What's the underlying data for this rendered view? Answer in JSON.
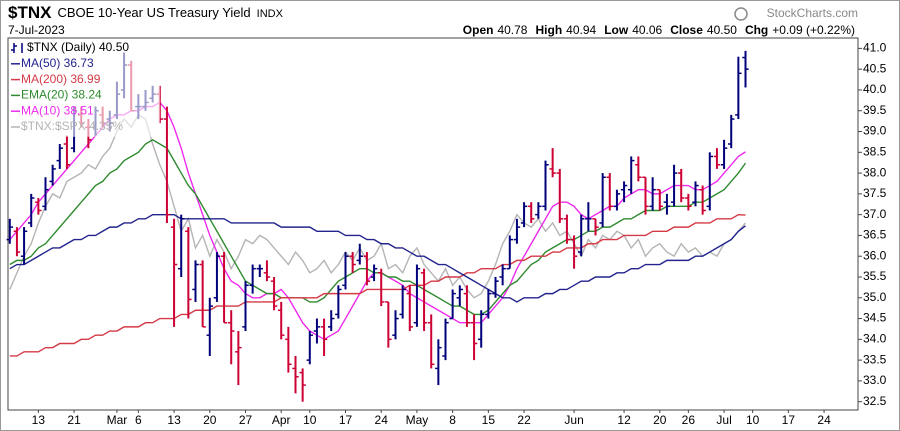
{
  "chart_data": {
    "type": "ohlc",
    "title": "$TNX",
    "subtitle": "CBOE 10-Year US Treasury Yield",
    "exchange": "INDX",
    "source": "StockCharts.com",
    "date": "7-Jul-2023",
    "quote": [
      {
        "label": "Open",
        "value": "40.78"
      },
      {
        "label": "High",
        "value": "40.94"
      },
      {
        "label": "Low",
        "value": "40.06"
      },
      {
        "label": "Close",
        "value": "40.50"
      },
      {
        "label": "Chg",
        "value": "+0.09 (+0.22%)"
      }
    ],
    "legend": "top-left",
    "grid": false,
    "ylim": [
      32.3,
      41.25
    ],
    "yticks": [
      32.5,
      {
        "value": 33,
        "label": "33.0"
      },
      33.5,
      {
        "value": 34,
        "label": "34.0"
      },
      34.5,
      {
        "value": 35,
        "label": "35.0"
      },
      35.5,
      {
        "value": 36,
        "label": "36.0"
      },
      36.5,
      {
        "value": 37,
        "label": "37.0"
      },
      37.5,
      {
        "value": 38,
        "label": "38.0"
      },
      38.5,
      {
        "value": 39,
        "label": "39.0"
      },
      39.5,
      {
        "value": 40,
        "label": "40.0"
      },
      40.5,
      {
        "value": 41,
        "label": "41.0"
      }
    ],
    "categories": [
      null,
      null,
      null,
      null,
      "13",
      null,
      null,
      null,
      null,
      "21",
      null,
      null,
      null,
      null,
      null,
      "Mar",
      null,
      null,
      "6",
      null,
      null,
      null,
      null,
      "13",
      null,
      null,
      null,
      null,
      "20",
      null,
      null,
      null,
      null,
      "27",
      null,
      null,
      null,
      null,
      "Apr",
      null,
      null,
      null,
      "10",
      null,
      null,
      null,
      null,
      "17",
      null,
      null,
      null,
      null,
      "24",
      null,
      null,
      null,
      null,
      "May",
      null,
      null,
      null,
      null,
      "8",
      null,
      null,
      null,
      null,
      "15",
      null,
      null,
      null,
      null,
      "22",
      null,
      null,
      null,
      null,
      null,
      null,
      "Jun",
      null,
      null,
      null,
      null,
      null,
      null,
      "12",
      null,
      null,
      null,
      null,
      "20",
      null,
      null,
      null,
      "26",
      null,
      null,
      null,
      null,
      "Jul",
      null,
      null,
      null,
      "10",
      null,
      null,
      null,
      null,
      "17",
      null,
      null,
      null,
      null,
      "24",
      null,
      null,
      null,
      null
    ],
    "ohlc": {
      "name": "$TNX (Daily) 40.50",
      "up_color": "#00007a",
      "down_color": "#cc0033",
      "open": [
        36.4,
        36.6,
        36.0,
        36.8,
        37.3,
        37.2,
        37.8,
        38.3,
        38.7,
        38.6,
        39.4,
        39.1,
        39.1,
        39.4,
        39.3,
        39.4,
        40.0,
        40.6,
        39.6,
        39.6,
        39.8,
        39.9,
        39.3,
        36.7,
        35.7,
        36.6,
        35.2,
        35.8,
        34.1,
        35.0,
        36.0,
        34.4,
        33.7,
        34.3,
        35.3,
        35.7,
        35.6,
        35.4,
        34.7,
        34.0,
        33.3,
        33.2,
        33.5,
        34.2,
        34.3,
        34.3,
        34.6,
        35.3,
        36.0,
        35.9,
        36.0,
        35.5,
        35.6,
        34.9,
        34.1,
        34.6,
        35.1,
        34.4,
        35.6,
        34.4,
        33.3,
        33.6,
        34.5,
        35.0,
        35.1,
        34.4,
        34.0,
        34.6,
        35.1,
        35.5,
        35.7,
        36.4,
        36.8,
        37.2,
        37.0,
        37.2,
        38.1,
        38.0,
        36.9,
        36.4,
        36.1,
        36.9,
        36.9,
        36.8,
        37.9,
        37.2,
        37.6,
        37.6,
        38.2,
        37.9,
        37.2,
        37.6,
        37.3,
        37.3,
        38.0,
        37.4,
        37.3,
        37.6,
        37.2,
        38.4,
        38.2,
        38.7,
        39.4,
        40.78,
        null,
        null,
        null,
        null,
        null,
        null,
        null,
        null,
        null,
        null,
        null,
        null,
        null,
        null,
        null
      ],
      "high": [
        36.9,
        36.7,
        36.7,
        37.5,
        37.4,
        37.9,
        38.2,
        38.7,
        38.9,
        39.6,
        39.6,
        39.3,
        39.6,
        39.6,
        39.5,
        40.2,
        40.9,
        40.7,
        39.9,
        40.0,
        40.1,
        40.1,
        39.6,
        36.9,
        37.0,
        36.7,
        35.9,
        35.9,
        35.0,
        36.1,
        36.1,
        34.7,
        34.2,
        35.4,
        35.8,
        35.8,
        35.9,
        35.5,
        34.9,
        34.3,
        33.6,
        33.3,
        34.2,
        34.5,
        34.5,
        34.7,
        35.3,
        36.1,
        36.1,
        36.3,
        36.1,
        35.8,
        35.7,
        34.9,
        34.7,
        35.3,
        35.3,
        35.8,
        35.7,
        34.6,
        34.0,
        34.5,
        35.2,
        35.3,
        35.3,
        34.6,
        34.7,
        35.2,
        35.5,
        35.8,
        36.5,
        36.9,
        37.3,
        37.3,
        37.3,
        38.3,
        38.6,
        38.1,
        37.0,
        36.5,
        37.0,
        37.3,
        36.9,
        38.0,
        38.0,
        37.6,
        37.8,
        38.4,
        38.4,
        37.9,
        37.9,
        37.6,
        37.5,
        38.2,
        38.1,
        37.5,
        37.8,
        37.7,
        38.5,
        38.6,
        38.8,
        39.4,
        40.8,
        40.94,
        null,
        null,
        null,
        null,
        null,
        null,
        null,
        null,
        null,
        null,
        null,
        null,
        null,
        null,
        null
      ],
      "low": [
        36.3,
        36.0,
        35.8,
        36.7,
        37.0,
        37.1,
        37.7,
        38.1,
        38.1,
        38.5,
        39.1,
        38.6,
        38.9,
        39.1,
        39.0,
        39.3,
        39.8,
        39.5,
        39.3,
        39.5,
        39.7,
        39.2,
        36.8,
        34.3,
        35.5,
        34.5,
        34.9,
        34.3,
        33.6,
        34.9,
        34.4,
        33.4,
        32.9,
        34.2,
        35.1,
        35.5,
        35.4,
        34.7,
        34.0,
        33.2,
        32.7,
        32.5,
        33.4,
        33.9,
        33.6,
        34.2,
        34.5,
        35.2,
        35.6,
        35.8,
        35.3,
        35.4,
        34.8,
        33.8,
        34.0,
        34.5,
        34.2,
        34.3,
        34.2,
        33.3,
        32.9,
        33.5,
        34.5,
        34.8,
        34.3,
        33.5,
        33.8,
        34.5,
        35.0,
        35.3,
        35.7,
        36.3,
        36.7,
        36.8,
        36.9,
        37.1,
        37.9,
        36.8,
        36.3,
        35.7,
        36.0,
        36.6,
        36.5,
        36.7,
        37.1,
        37.1,
        37.3,
        37.5,
        37.8,
        37.0,
        37.1,
        37.1,
        37.0,
        37.2,
        37.3,
        37.1,
        37.2,
        37.0,
        37.1,
        38.1,
        38.1,
        38.6,
        39.3,
        40.06,
        null,
        null,
        null,
        null,
        null,
        null,
        null,
        null,
        null,
        null,
        null,
        null,
        null,
        null,
        null
      ],
      "close": [
        36.7,
        36.1,
        36.6,
        37.4,
        37.1,
        37.6,
        38.1,
        38.6,
        38.2,
        39.5,
        39.2,
        38.8,
        39.5,
        39.2,
        39.2,
        39.9,
        40.6,
        39.5,
        39.6,
        39.7,
        39.9,
        39.3,
        37.0,
        35.8,
        36.9,
        34.96,
        35.8,
        34.3,
        34.8,
        36.0,
        34.4,
        34.2,
        33.8,
        35.3,
        35.7,
        35.7,
        35.5,
        34.8,
        34.1,
        33.4,
        33.1,
        32.9,
        34.1,
        34.3,
        34.0,
        34.5,
        35.2,
        36.0,
        35.8,
        36.0,
        35.4,
        35.7,
        34.9,
        34.0,
        34.5,
        35.2,
        34.3,
        35.7,
        34.4,
        33.4,
        33.8,
        34.4,
        35.1,
        35.2,
        34.4,
        33.9,
        34.6,
        35.1,
        35.4,
        35.7,
        36.4,
        36.7,
        37.2,
        36.9,
        37.2,
        38.2,
        38.0,
        36.9,
        36.4,
        36.0,
        36.9,
        36.9,
        36.7,
        37.9,
        37.2,
        37.5,
        37.7,
        38.3,
        37.9,
        37.2,
        37.6,
        37.2,
        37.2,
        38.0,
        37.4,
        37.2,
        37.7,
        37.1,
        38.4,
        38.2,
        38.6,
        39.3,
        40.4,
        40.5,
        null,
        null,
        null,
        null,
        null,
        null,
        null,
        null,
        null,
        null,
        null,
        null,
        null,
        null,
        null
      ]
    },
    "series": [
      {
        "name": "MA(50) 36.73",
        "color": "#23238e",
        "values": [
          35.7,
          35.8,
          35.8,
          35.9,
          36.0,
          36.1,
          36.2,
          36.2,
          36.3,
          36.4,
          36.4,
          36.5,
          36.5,
          36.6,
          36.7,
          36.7,
          36.8,
          36.8,
          36.9,
          36.9,
          37.0,
          37.0,
          37.0,
          37.0,
          36.9,
          36.9,
          36.9,
          36.9,
          36.9,
          36.9,
          36.9,
          36.8,
          36.8,
          36.8,
          36.8,
          36.8,
          36.8,
          36.8,
          36.7,
          36.7,
          36.7,
          36.7,
          36.7,
          36.6,
          36.6,
          36.6,
          36.6,
          36.5,
          36.5,
          36.5,
          36.4,
          36.4,
          36.3,
          36.3,
          36.2,
          36.2,
          36.1,
          36.0,
          36.0,
          35.9,
          35.8,
          35.8,
          35.7,
          35.6,
          35.5,
          35.4,
          35.3,
          35.2,
          35.1,
          35.0,
          35.0,
          34.9,
          35.0,
          35.0,
          35.0,
          35.1,
          35.1,
          35.2,
          35.2,
          35.3,
          35.4,
          35.4,
          35.5,
          35.5,
          35.5,
          35.6,
          35.6,
          35.7,
          35.7,
          35.8,
          35.8,
          35.8,
          35.9,
          35.9,
          35.9,
          35.9,
          36.0,
          36.0,
          36.1,
          36.2,
          36.3,
          36.4,
          36.6,
          36.73,
          null,
          null,
          null,
          null,
          null,
          null,
          null,
          null,
          null,
          null,
          null,
          null,
          null,
          null,
          null
        ]
      },
      {
        "name": "MA(200) 36.99",
        "color": "#d43a45",
        "values": [
          33.6,
          33.6,
          33.7,
          33.7,
          33.7,
          33.8,
          33.8,
          33.9,
          33.9,
          33.9,
          34.0,
          34.0,
          34.1,
          34.1,
          34.2,
          34.2,
          34.3,
          34.3,
          34.3,
          34.4,
          34.4,
          34.5,
          34.5,
          34.5,
          34.6,
          34.6,
          34.7,
          34.7,
          34.7,
          34.8,
          34.8,
          34.8,
          34.8,
          34.9,
          34.9,
          34.9,
          34.9,
          34.9,
          35.0,
          35.0,
          35.0,
          35.0,
          35.0,
          35.0,
          35.1,
          35.1,
          35.1,
          35.1,
          35.1,
          35.1,
          35.2,
          35.2,
          35.2,
          35.2,
          35.2,
          35.2,
          35.3,
          35.3,
          35.3,
          35.4,
          35.4,
          35.5,
          35.5,
          35.5,
          35.6,
          35.6,
          35.7,
          35.7,
          35.7,
          35.8,
          35.8,
          35.9,
          35.9,
          36.0,
          36.0,
          36.0,
          36.1,
          36.1,
          36.2,
          36.2,
          36.2,
          36.3,
          36.3,
          36.4,
          36.4,
          36.4,
          36.5,
          36.5,
          36.5,
          36.5,
          36.6,
          36.6,
          36.6,
          36.7,
          36.7,
          36.7,
          36.8,
          36.8,
          36.8,
          36.9,
          36.9,
          36.9,
          37.0,
          36.99,
          null,
          null,
          null,
          null,
          null,
          null,
          null,
          null,
          null,
          null,
          null,
          null,
          null,
          null,
          null
        ]
      },
      {
        "name": "EMA(20) 38.24",
        "color": "#2f8a2f",
        "values": [
          35.8,
          35.9,
          35.9,
          36.0,
          36.2,
          36.3,
          36.5,
          36.7,
          36.9,
          37.1,
          37.3,
          37.5,
          37.7,
          37.8,
          38.0,
          38.1,
          38.3,
          38.4,
          38.5,
          38.7,
          38.8,
          38.7,
          38.6,
          38.3,
          38.0,
          37.7,
          37.5,
          37.2,
          36.9,
          36.6,
          36.3,
          36.0,
          35.7,
          35.4,
          35.3,
          35.2,
          35.1,
          35.1,
          35.0,
          35.0,
          35.0,
          35.0,
          34.9,
          34.9,
          35.0,
          35.2,
          35.4,
          35.5,
          35.6,
          35.7,
          35.7,
          35.6,
          35.6,
          35.5,
          35.5,
          35.4,
          35.4,
          35.3,
          35.2,
          35.1,
          35.0,
          34.9,
          34.8,
          34.8,
          34.7,
          34.6,
          34.6,
          34.7,
          34.9,
          35.1,
          35.3,
          35.4,
          35.6,
          35.8,
          35.9,
          36.1,
          36.2,
          36.3,
          36.4,
          36.4,
          36.5,
          36.6,
          36.6,
          36.7,
          36.7,
          36.8,
          36.9,
          36.9,
          37.0,
          37.1,
          37.1,
          37.1,
          37.2,
          37.2,
          37.2,
          37.2,
          37.3,
          37.3,
          37.4,
          37.5,
          37.6,
          37.8,
          38.0,
          38.24,
          null,
          null,
          null,
          null,
          null,
          null,
          null,
          null,
          null,
          null,
          null,
          null,
          null,
          null,
          null
        ]
      },
      {
        "name": "MA(10) 38.51",
        "color": "#ee2aee",
        "values": [
          36.4,
          36.6,
          36.8,
          37.0,
          37.3,
          37.5,
          37.7,
          37.9,
          38.1,
          38.3,
          38.5,
          38.7,
          38.9,
          39.1,
          39.3,
          39.4,
          39.4,
          39.5,
          39.5,
          39.6,
          39.6,
          39.7,
          39.5,
          39.1,
          38.6,
          38.0,
          37.5,
          37.0,
          36.5,
          36.1,
          35.7,
          35.4,
          35.3,
          35.1,
          35.0,
          35.0,
          35.1,
          35.1,
          35.2,
          35.0,
          34.7,
          34.4,
          34.2,
          34.1,
          34.0,
          34.1,
          34.2,
          34.5,
          34.8,
          35.1,
          35.4,
          35.6,
          35.6,
          35.5,
          35.4,
          35.3,
          35.1,
          35.0,
          34.9,
          34.8,
          34.7,
          34.6,
          34.5,
          34.4,
          34.4,
          34.4,
          34.4,
          34.6,
          34.8,
          35.0,
          35.3,
          35.7,
          36.0,
          36.3,
          36.6,
          36.9,
          37.2,
          37.3,
          37.3,
          37.2,
          37.0,
          36.9,
          37.0,
          37.1,
          37.2,
          37.2,
          37.4,
          37.5,
          37.6,
          37.6,
          37.5,
          37.5,
          37.6,
          37.7,
          37.7,
          37.7,
          37.6,
          37.6,
          37.7,
          37.8,
          38.0,
          38.2,
          38.4,
          38.51,
          null,
          null,
          null,
          null,
          null,
          null,
          null,
          null,
          null,
          null,
          null,
          null,
          null,
          null,
          null
        ]
      },
      {
        "name": "$TNX:$SPX 4.35%",
        "color": "#b4b4b4",
        "values": [
          35.2,
          35.6,
          36.0,
          36.3,
          36.8,
          37.2,
          37.5,
          37.4,
          37.8,
          37.9,
          38.0,
          38.2,
          38.1,
          38.4,
          38.6,
          39.0,
          39.3,
          39.1,
          39.4,
          39.3,
          38.7,
          38.2,
          37.8,
          37.2,
          36.6,
          36.9,
          36.2,
          36.5,
          36.0,
          36.4,
          36.1,
          35.7,
          36.0,
          36.4,
          36.3,
          36.5,
          36.4,
          36.2,
          36.0,
          35.8,
          36.1,
          35.9,
          35.6,
          35.7,
          35.9,
          35.6,
          35.8,
          36.1,
          35.9,
          36.2,
          35.9,
          36.0,
          36.3,
          35.7,
          35.8,
          35.6,
          36.0,
          36.2,
          35.8,
          35.6,
          35.4,
          35.7,
          35.3,
          35.5,
          35.2,
          35.0,
          35.1,
          35.4,
          35.8,
          36.3,
          36.6,
          37.0,
          36.8,
          36.7,
          36.9,
          36.6,
          36.8,
          36.5,
          36.6,
          36.3,
          36.0,
          36.4,
          36.2,
          36.5,
          36.4,
          36.6,
          36.5,
          36.2,
          36.4,
          36.0,
          36.2,
          36.3,
          36.1,
          36.0,
          36.3,
          36.1,
          36.2,
          36.0,
          36.1,
          36.0,
          36.3,
          36.4,
          36.6,
          36.8,
          null,
          null,
          null,
          null,
          null,
          null,
          null,
          null,
          null,
          null,
          null,
          null,
          null,
          null,
          null
        ]
      }
    ]
  }
}
